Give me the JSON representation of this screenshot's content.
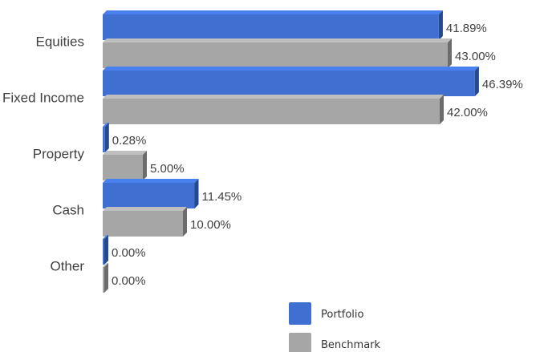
{
  "chart_data": {
    "type": "bar",
    "orientation": "horizontal",
    "three_d": true,
    "categories": [
      "Equities",
      "Fixed Income",
      "Property",
      "Cash",
      "Other"
    ],
    "series": [
      {
        "name": "Portfolio",
        "color": "#3F6FD0",
        "values": [
          41.89,
          46.39,
          0.28,
          11.45,
          0.0
        ],
        "labels": [
          "41.89%",
          "46.39%",
          "0.28%",
          "11.45%",
          "0.00%"
        ]
      },
      {
        "name": "Benchmark",
        "color": "#A6A6A6",
        "values": [
          43.0,
          42.0,
          5.0,
          10.0,
          0.0
        ],
        "labels": [
          "43.00%",
          "42.00%",
          "5.00%",
          "10.00%",
          "0.00%"
        ]
      }
    ],
    "xlim": [
      0,
      50
    ],
    "unit": "%",
    "grid": false,
    "legend_position": "bottom"
  }
}
